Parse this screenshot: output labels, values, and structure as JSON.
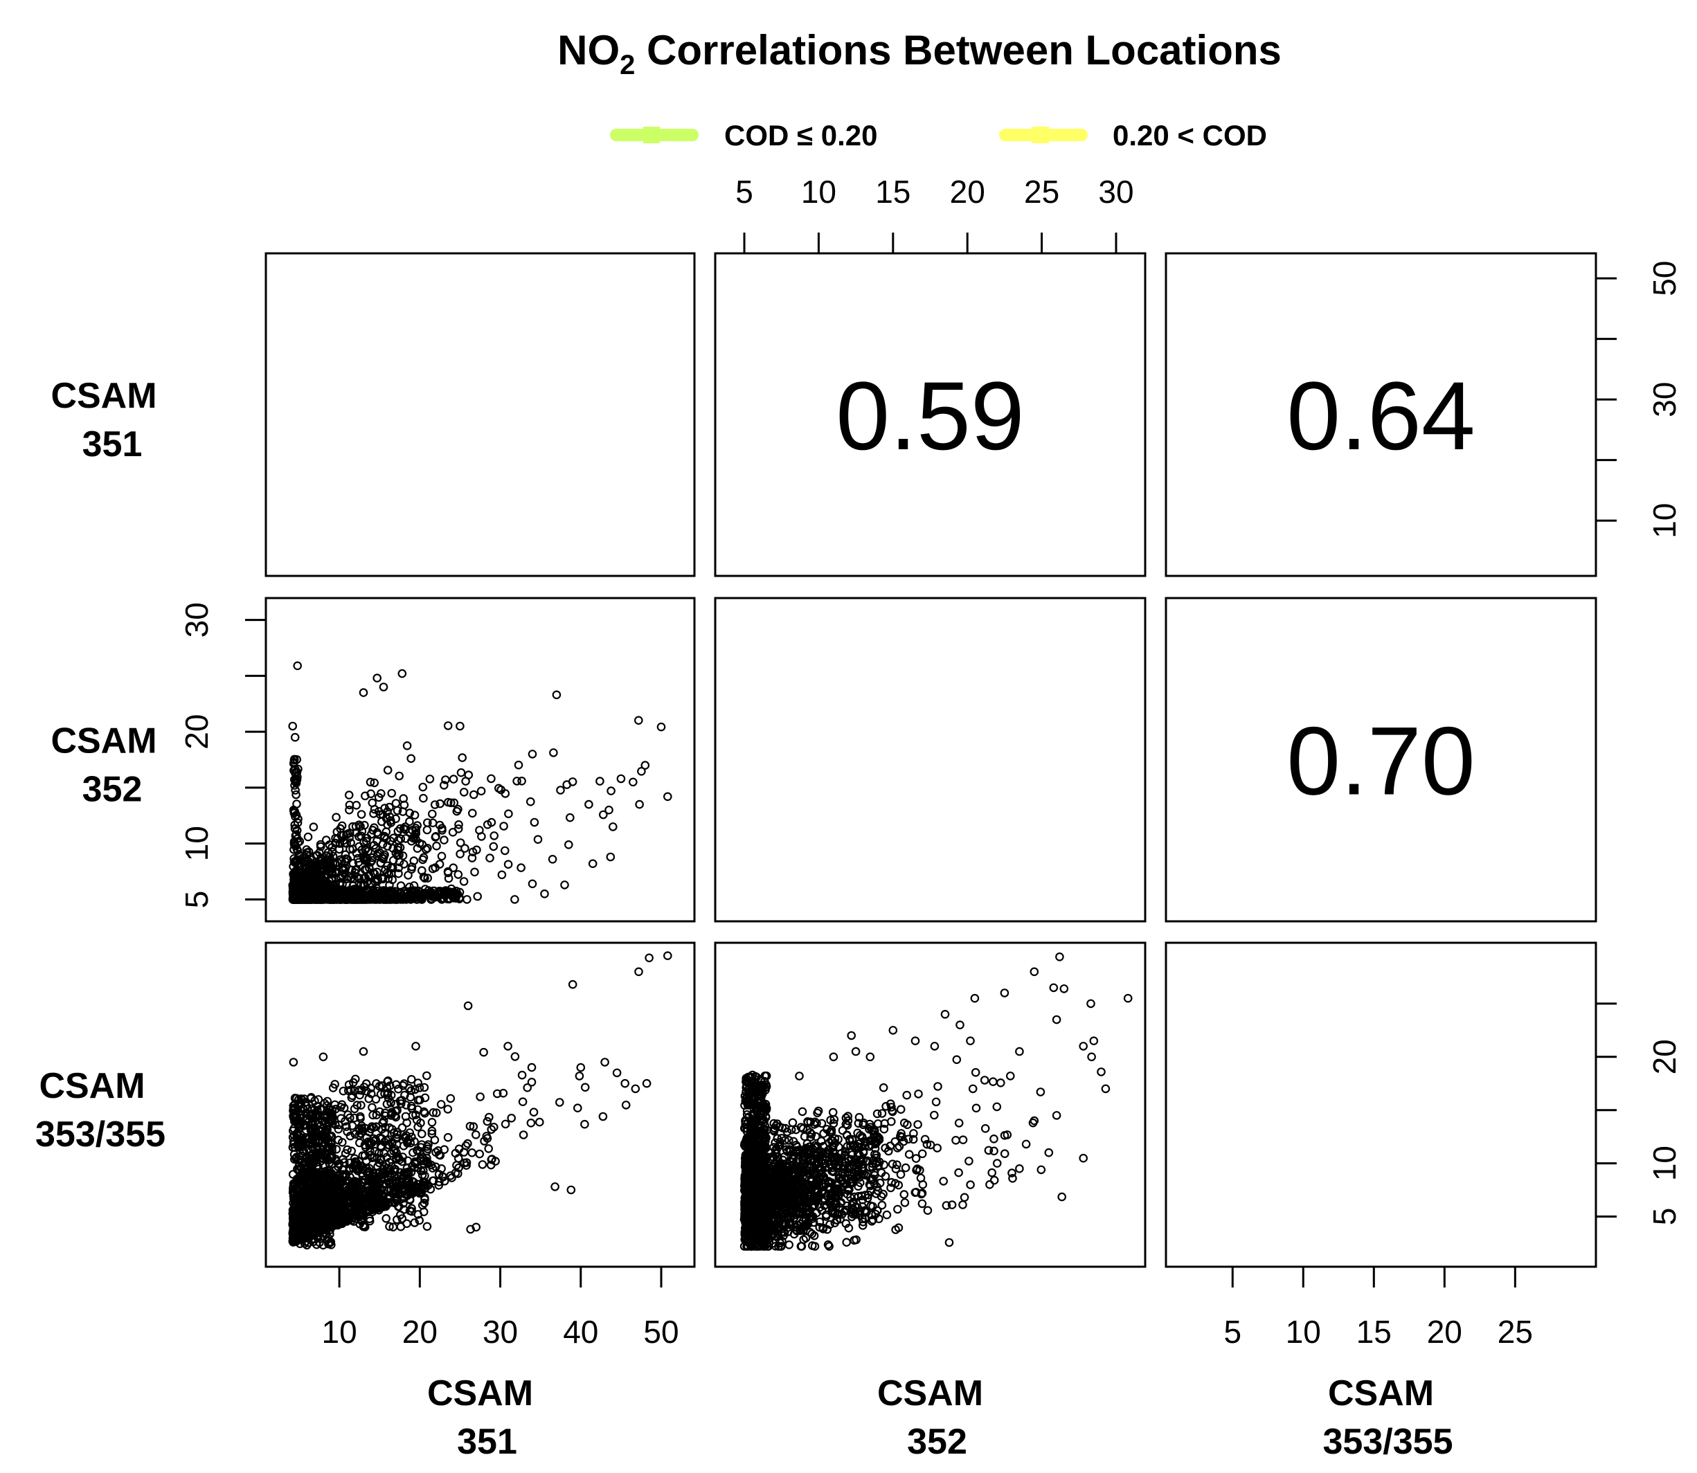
{
  "chart_data": {
    "type": "scatter",
    "title": "NO",
    "title_sub": "2",
    "title_rest": " Correlations Between Locations",
    "legend": [
      {
        "label": "COD ≤ 0.20",
        "color": "#ccff66"
      },
      {
        "label": "0.20 < COD",
        "color": "#ffff66"
      }
    ],
    "legend_placement": "top",
    "variables": [
      {
        "line1": "CSAM",
        "line2": "351",
        "range": [
          3,
          52
        ],
        "ticks": [
          "10",
          "20",
          "30",
          "40",
          "50"
        ]
      },
      {
        "line1": "CSAM",
        "line2": "352",
        "range": [
          4.2,
          30.8
        ],
        "ticks": [
          "5",
          "10",
          "15",
          "20",
          "25",
          "30"
        ]
      },
      {
        "line1": "CSAM",
        "line2": "353/355",
        "range": [
          1.5,
          29.5
        ],
        "ticks": [
          "5",
          "10",
          "15",
          "20",
          "25"
        ]
      }
    ],
    "correlations": [
      {
        "row": 0,
        "col": 1,
        "value": "0.59"
      },
      {
        "row": 0,
        "col": 2,
        "value": "0.64"
      },
      {
        "row": 1,
        "col": 2,
        "value": "0.70"
      }
    ],
    "scatter_panels": [
      {
        "row": 1,
        "col": 0,
        "x_var": "CSAM 351",
        "y_var": "CSAM 352",
        "cod_group": "0.20 < COD",
        "bg": "#ffff66"
      },
      {
        "row": 2,
        "col": 0,
        "x_var": "CSAM 351",
        "y_var": "CSAM 353/355",
        "cod_group": "0.20 < COD",
        "bg": "#ffff66"
      },
      {
        "row": 2,
        "col": 1,
        "x_var": "CSAM 352",
        "y_var": "CSAM 353/355",
        "cod_group": "COD ≤ 0.20",
        "bg": "#ccff66"
      }
    ],
    "axes": {
      "top": {
        "over_column": 1,
        "ticks": [
          "5",
          "10",
          "15",
          "20",
          "25",
          "30"
        ]
      },
      "right_top": {
        "over_row": 0,
        "ticks": [
          "10",
          "30",
          "50"
        ],
        "unlabeled_ticks": [
          20,
          40
        ]
      },
      "left_middle": {
        "over_row": 1,
        "ticks": [
          "5",
          "10",
          "20",
          "30"
        ],
        "unlabeled_ticks": [
          15,
          25
        ]
      },
      "right_bottom": {
        "over_row": 2,
        "ticks": [
          "5",
          "10",
          "20"
        ],
        "unlabeled_ticks": [
          15,
          25
        ]
      },
      "bottom_left": {
        "over_column": 0,
        "ticks": [
          "10",
          "20",
          "30",
          "40",
          "50"
        ]
      },
      "bottom_right": {
        "over_column": 2,
        "ticks": [
          "5",
          "10",
          "15",
          "20",
          "25"
        ]
      }
    },
    "outliers": {
      "p10": [
        [
          4.8,
          25.9
        ],
        [
          14.7,
          24.8
        ],
        [
          17.8,
          25.2
        ],
        [
          15.5,
          24.0
        ],
        [
          13.0,
          23.5
        ],
        [
          37.0,
          23.3
        ],
        [
          25.0,
          20.5
        ],
        [
          34.0,
          18.0
        ],
        [
          48.0,
          17.0
        ],
        [
          45.0,
          15.8
        ],
        [
          46.5,
          15.5
        ],
        [
          50.8,
          14.2
        ],
        [
          41.0,
          13.5
        ],
        [
          43.5,
          13.0
        ],
        [
          47.3,
          13.5
        ],
        [
          44.0,
          11.5
        ],
        [
          38.5,
          9.9
        ],
        [
          36.5,
          8.6
        ],
        [
          41.5,
          8.2
        ],
        [
          38.0,
          6.3
        ],
        [
          35.5,
          5.5
        ],
        [
          34.0,
          6.4
        ],
        [
          4.2,
          20.5
        ],
        [
          4.5,
          19.5
        ]
      ],
      "p20": [
        [
          50.8,
          29.5
        ],
        [
          48.5,
          29.3
        ],
        [
          47.2,
          28.0
        ],
        [
          39.0,
          26.8
        ],
        [
          26.0,
          24.8
        ],
        [
          19.5,
          21.0
        ],
        [
          13.0,
          20.5
        ],
        [
          8.0,
          20.0
        ],
        [
          45.5,
          17.5
        ],
        [
          46.8,
          17.0
        ],
        [
          48.2,
          17.5
        ],
        [
          40.0,
          19.0
        ],
        [
          43.0,
          19.5
        ],
        [
          44.5,
          18.5
        ],
        [
          36.8,
          7.8
        ],
        [
          38.8,
          7.5
        ],
        [
          27.0,
          4.0
        ],
        [
          26.3,
          3.8
        ],
        [
          17.8,
          4.8
        ],
        [
          4.3,
          19.5
        ]
      ],
      "p21": [
        [
          26.2,
          29.4
        ],
        [
          24.5,
          28.0
        ],
        [
          25.8,
          26.5
        ],
        [
          26.5,
          26.4
        ],
        [
          22.5,
          26.0
        ],
        [
          20.5,
          25.5
        ],
        [
          28.3,
          25.0
        ],
        [
          18.5,
          24.0
        ],
        [
          30.8,
          25.5
        ],
        [
          19.5,
          23.0
        ],
        [
          26.0,
          23.5
        ],
        [
          20.2,
          21.5
        ],
        [
          27.8,
          21.0
        ],
        [
          28.5,
          21.5
        ],
        [
          23.5,
          20.5
        ],
        [
          16.5,
          21.5
        ],
        [
          17.8,
          21.0
        ],
        [
          12.5,
          20.5
        ],
        [
          11.0,
          20.0
        ],
        [
          8.7,
          18.2
        ],
        [
          12.2,
          22.0
        ],
        [
          15.0,
          22.5
        ],
        [
          29.3,
          17.0
        ],
        [
          26.0,
          14.5
        ],
        [
          24.5,
          14.0
        ],
        [
          22.0,
          10.0
        ],
        [
          23.5,
          9.5
        ],
        [
          21.5,
          8.0
        ],
        [
          17.0,
          8.0
        ],
        [
          13.5,
          6.0
        ],
        [
          10.5,
          5.0
        ]
      ]
    }
  }
}
